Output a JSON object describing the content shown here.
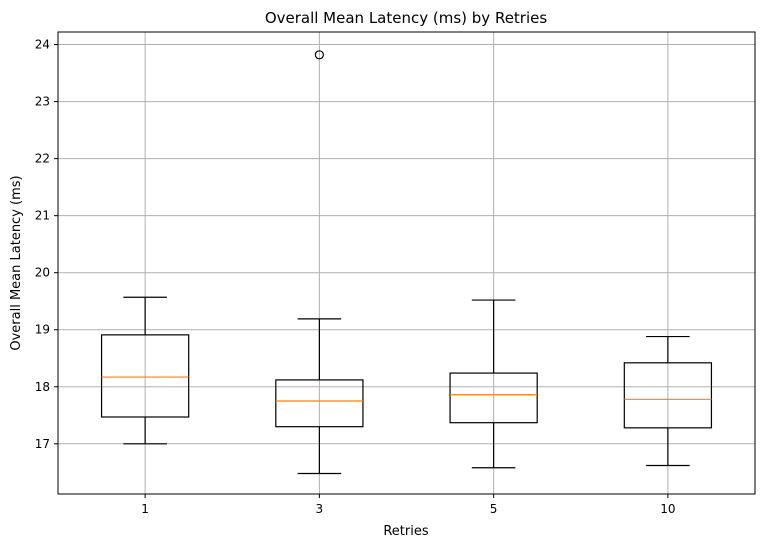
{
  "chart_data": {
    "type": "box",
    "title": "Overall Mean Latency (ms) by Retries",
    "xlabel": "Retries",
    "ylabel": "Overall Mean Latency (ms)",
    "categories": [
      "1",
      "3",
      "5",
      "10"
    ],
    "yticks": [
      "17",
      "18",
      "19",
      "20",
      "21",
      "22",
      "23",
      "24"
    ],
    "ylim": [
      16.12,
      24.22
    ],
    "grid": true,
    "median_color": "#ff7f0e",
    "box_color": "#000000",
    "grid_color": "#b0b0b0",
    "boxes": [
      {
        "category": "1",
        "whisker_low": 17.0,
        "q1": 17.47,
        "median": 18.17,
        "q3": 18.91,
        "whisker_high": 19.57,
        "outliers": []
      },
      {
        "category": "3",
        "whisker_low": 16.48,
        "q1": 17.3,
        "median": 17.75,
        "q3": 18.12,
        "whisker_high": 19.19,
        "outliers": [
          23.82
        ]
      },
      {
        "category": "5",
        "whisker_low": 16.58,
        "q1": 17.37,
        "median": 17.86,
        "q3": 18.24,
        "whisker_high": 19.52,
        "outliers": []
      },
      {
        "category": "10",
        "whisker_low": 16.62,
        "q1": 17.28,
        "median": 17.78,
        "q3": 18.42,
        "whisker_high": 18.88,
        "outliers": []
      }
    ]
  }
}
